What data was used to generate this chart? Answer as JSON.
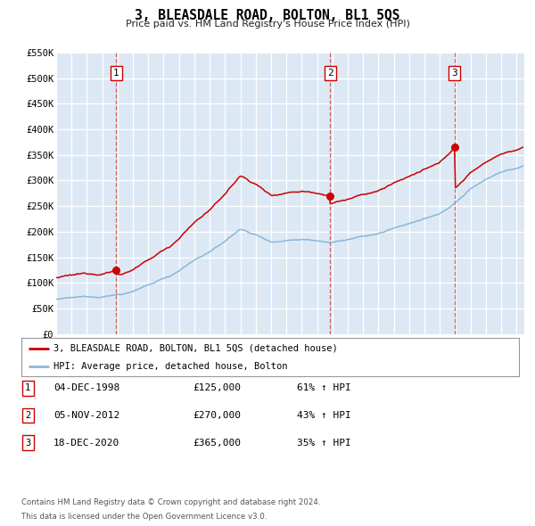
{
  "title": "3, BLEASDALE ROAD, BOLTON, BL1 5QS",
  "subtitle": "Price paid vs. HM Land Registry's House Price Index (HPI)",
  "legend_line1": "3, BLEASDALE ROAD, BOLTON, BL1 5QS (detached house)",
  "legend_line2": "HPI: Average price, detached house, Bolton",
  "footer_line1": "Contains HM Land Registry data © Crown copyright and database right 2024.",
  "footer_line2": "This data is licensed under the Open Government Licence v3.0.",
  "red_color": "#cc0000",
  "blue_color": "#7aadd4",
  "bg_color": "#dce9f5",
  "sale_events": [
    {
      "num": 1,
      "date": "04-DEC-1998",
      "price": "£125,000",
      "pct": "61% ↑ HPI",
      "year": 1998.92
    },
    {
      "num": 2,
      "date": "05-NOV-2012",
      "price": "£270,000",
      "pct": "43% ↑ HPI",
      "year": 2012.84
    },
    {
      "num": 3,
      "date": "18-DEC-2020",
      "price": "£365,000",
      "pct": "35% ↑ HPI",
      "year": 2020.96
    }
  ],
  "sale_prices": [
    125000,
    270000,
    365000
  ],
  "ylim": [
    0,
    550000
  ],
  "yticks": [
    0,
    50000,
    100000,
    150000,
    200000,
    250000,
    300000,
    350000,
    400000,
    450000,
    500000,
    550000
  ],
  "xlim_start": 1995.0,
  "xlim_end": 2025.5,
  "xticks": [
    1995,
    1996,
    1997,
    1998,
    1999,
    2000,
    2001,
    2002,
    2003,
    2004,
    2005,
    2006,
    2007,
    2008,
    2009,
    2010,
    2011,
    2012,
    2013,
    2014,
    2015,
    2016,
    2017,
    2018,
    2019,
    2020,
    2021,
    2022,
    2023,
    2024,
    2025
  ]
}
